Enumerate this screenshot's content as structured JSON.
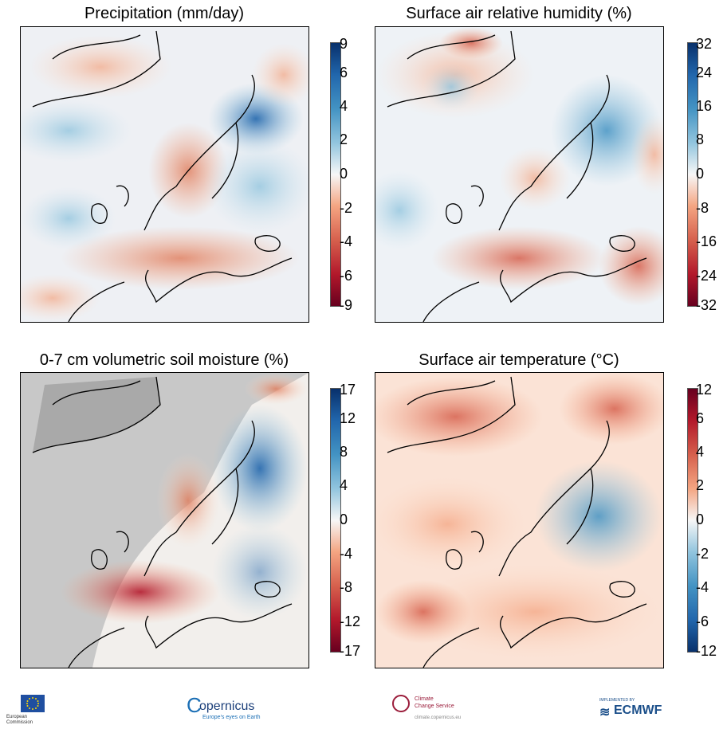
{
  "panels": [
    {
      "id": "precipitation",
      "title": "Precipitation (mm/day)",
      "colormap": "red-blue",
      "ticks": [
        "9",
        "6",
        "4",
        "2",
        "0",
        "-2",
        "-4",
        "-6",
        "-9"
      ]
    },
    {
      "id": "humidity",
      "title": "Surface air relative humidity (%)",
      "colormap": "red-blue",
      "ticks": [
        "32",
        "24",
        "16",
        "8",
        "0",
        "-8",
        "-16",
        "-24",
        "-32"
      ]
    },
    {
      "id": "soil",
      "title": "0-7 cm volumetric soil moisture (%)",
      "colormap": "red-blue",
      "ticks": [
        "17",
        "12",
        "8",
        "4",
        "0",
        "-4",
        "-8",
        "-12",
        "-17"
      ]
    },
    {
      "id": "temperature",
      "title": "Surface air temperature (°C)",
      "colormap": "blue-red",
      "ticks": [
        "12",
        "6",
        "4",
        "2",
        "0",
        "-2",
        "-4",
        "-6",
        "-12"
      ]
    }
  ],
  "colors": {
    "positive_wet": "#2166ac",
    "negative_dry": "#d6604d",
    "land_mask": "#c8c8c8"
  },
  "footer": {
    "eu_line1": "European",
    "eu_line2": "Commission",
    "copernicus": "opernicus",
    "copernicus_tagline": "Europe's eyes on Earth",
    "c3s_line1": "Climate",
    "c3s_line2": "Change Service",
    "c3s_url": "climate.copernicus.eu",
    "ecmwf_small": "IMPLEMENTED BY",
    "ecmwf": "ECMWF"
  }
}
